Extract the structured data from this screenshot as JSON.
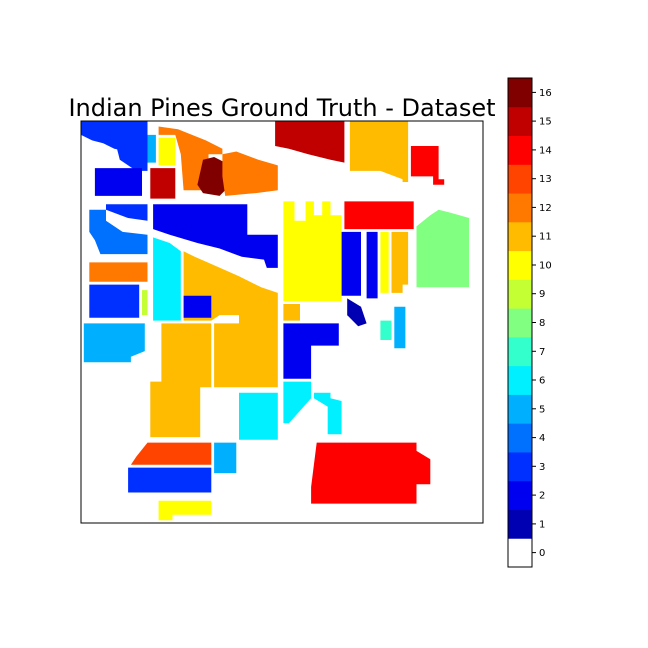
{
  "chart_data": {
    "type": "heatmap",
    "title": "Indian Pines Ground Truth - Dataset",
    "xlabel": "",
    "ylabel": "",
    "grid": false,
    "axis_ticks": false,
    "image_extent": [
      0,
      145,
      145,
      0
    ],
    "colormap": "jet",
    "colorbar": {
      "position": "right",
      "range": [
        -0.5,
        16.5
      ],
      "ticks": [
        0,
        1,
        2,
        3,
        4,
        5,
        6,
        7,
        8,
        9,
        10,
        11,
        12,
        13,
        14,
        15,
        16
      ],
      "tick_labels": [
        "0",
        "1",
        "2",
        "3",
        "4",
        "5",
        "6",
        "7",
        "8",
        "9",
        "10",
        "11",
        "12",
        "13",
        "14",
        "15",
        "16"
      ],
      "colors": [
        "#ffffff",
        "#0000b2",
        "#0000f0",
        "#0030ff",
        "#0070ff",
        "#00b0ff",
        "#00f0ff",
        "#33ffcc",
        "#80ff80",
        "#c4ff33",
        "#ffff00",
        "#ffbb00",
        "#ff7800",
        "#ff4400",
        "#ff0000",
        "#c00000",
        "#800000"
      ]
    },
    "regions": [
      {
        "label": 3,
        "polygon": [
          [
            0,
            0
          ],
          [
            24,
            0
          ],
          [
            24,
            5
          ],
          [
            20,
            9
          ],
          [
            17,
            11
          ],
          [
            12,
            10
          ],
          [
            8,
            8
          ],
          [
            4,
            7
          ],
          [
            0,
            5
          ]
        ]
      },
      {
        "label": 3,
        "polygon": [
          [
            15,
            5
          ],
          [
            24,
            5
          ],
          [
            24,
            18
          ],
          [
            20,
            18
          ],
          [
            14,
            14
          ],
          [
            13,
            10
          ]
        ]
      },
      {
        "label": 5,
        "polygon": [
          [
            24,
            5
          ],
          [
            27,
            5
          ],
          [
            27,
            15
          ],
          [
            24,
            15
          ]
        ]
      },
      {
        "label": 10,
        "polygon": [
          [
            28,
            6
          ],
          [
            34,
            6
          ],
          [
            34,
            16
          ],
          [
            28,
            16
          ]
        ]
      },
      {
        "label": 12,
        "polygon": [
          [
            28,
            2
          ],
          [
            35,
            3
          ],
          [
            45,
            7
          ],
          [
            51,
            10
          ],
          [
            51,
            12
          ],
          [
            46,
            12
          ],
          [
            46,
            25
          ],
          [
            37,
            25
          ],
          [
            36,
            12
          ],
          [
            34,
            5
          ],
          [
            28,
            5
          ]
        ]
      },
      {
        "label": 2,
        "polygon": [
          [
            5,
            17
          ],
          [
            22,
            17
          ],
          [
            22,
            27
          ],
          [
            5,
            27
          ]
        ]
      },
      {
        "label": 15,
        "polygon": [
          [
            25,
            17
          ],
          [
            34,
            17
          ],
          [
            34,
            28
          ],
          [
            25,
            28
          ]
        ]
      },
      {
        "label": 16,
        "polygon": [
          [
            44,
            14
          ],
          [
            48,
            13
          ],
          [
            52,
            15
          ],
          [
            53,
            24
          ],
          [
            50,
            27
          ],
          [
            44,
            26
          ],
          [
            42,
            23
          ]
        ]
      },
      {
        "label": 12,
        "polygon": [
          [
            51,
            12
          ],
          [
            56,
            11
          ],
          [
            64,
            14
          ],
          [
            71,
            16
          ],
          [
            71,
            25
          ],
          [
            63,
            26
          ],
          [
            52,
            27
          ],
          [
            51,
            20
          ]
        ]
      },
      {
        "label": 15,
        "polygon": [
          [
            70,
            0
          ],
          [
            95,
            0
          ],
          [
            95,
            15
          ],
          [
            90,
            14
          ],
          [
            82,
            12
          ],
          [
            75,
            10
          ],
          [
            70,
            9
          ]
        ]
      },
      {
        "label": 11,
        "polygon": [
          [
            97,
            0
          ],
          [
            118,
            0
          ],
          [
            118,
            22
          ],
          [
            116,
            22
          ],
          [
            116,
            21
          ],
          [
            108,
            18
          ],
          [
            97,
            18
          ]
        ]
      },
      {
        "label": 14,
        "polygon": [
          [
            119,
            9
          ],
          [
            129,
            9
          ],
          [
            129,
            21
          ],
          [
            131,
            21
          ],
          [
            131,
            23
          ],
          [
            127,
            23
          ],
          [
            127,
            20
          ],
          [
            119,
            20
          ]
        ]
      },
      {
        "label": 3,
        "polygon": [
          [
            9,
            30
          ],
          [
            24,
            30
          ],
          [
            24,
            36
          ],
          [
            17,
            35
          ],
          [
            9,
            32
          ]
        ]
      },
      {
        "label": 4,
        "polygon": [
          [
            3,
            32
          ],
          [
            9,
            32
          ],
          [
            9,
            36
          ],
          [
            15,
            40
          ],
          [
            24,
            41
          ],
          [
            24,
            48
          ],
          [
            7,
            48
          ],
          [
            5,
            43
          ],
          [
            3,
            40
          ]
        ]
      },
      {
        "label": 2,
        "polygon": [
          [
            26,
            30
          ],
          [
            60,
            30
          ],
          [
            60,
            41
          ],
          [
            71,
            41
          ],
          [
            71,
            53
          ],
          [
            67,
            53
          ],
          [
            66,
            50
          ],
          [
            58,
            49
          ],
          [
            50,
            46
          ],
          [
            42,
            44
          ],
          [
            32,
            41
          ],
          [
            26,
            39
          ]
        ]
      },
      {
        "label": 10,
        "polygon": [
          [
            73,
            29
          ],
          [
            77,
            29
          ],
          [
            77,
            36
          ],
          [
            81,
            36
          ],
          [
            81,
            29
          ],
          [
            84,
            29
          ],
          [
            84,
            34
          ],
          [
            87,
            34
          ],
          [
            87,
            29
          ],
          [
            90,
            29
          ],
          [
            90,
            34
          ],
          [
            94,
            34
          ],
          [
            94,
            65
          ],
          [
            73,
            65
          ]
        ]
      },
      {
        "label": 14,
        "polygon": [
          [
            95,
            29
          ],
          [
            120,
            29
          ],
          [
            120,
            39
          ],
          [
            95,
            39
          ]
        ]
      },
      {
        "label": 8,
        "polygon": [
          [
            126,
            34
          ],
          [
            129,
            32
          ],
          [
            133,
            33
          ],
          [
            140,
            35
          ],
          [
            140,
            60
          ],
          [
            121,
            60
          ],
          [
            121,
            38
          ]
        ]
      },
      {
        "label": 12,
        "polygon": [
          [
            3,
            51
          ],
          [
            24,
            51
          ],
          [
            24,
            58
          ],
          [
            3,
            58
          ]
        ]
      },
      {
        "label": 6,
        "polygon": [
          [
            26,
            42
          ],
          [
            32,
            44
          ],
          [
            36,
            47
          ],
          [
            36,
            72
          ],
          [
            26,
            72
          ]
        ]
      },
      {
        "label": 11,
        "polygon": [
          [
            37,
            47
          ],
          [
            41,
            49
          ],
          [
            48,
            52
          ],
          [
            57,
            56
          ],
          [
            65,
            60
          ],
          [
            71,
            62
          ],
          [
            71,
            96
          ],
          [
            68,
            96
          ],
          [
            48,
            96
          ],
          [
            48,
            73
          ],
          [
            57,
            73
          ],
          [
            57,
            70
          ],
          [
            50,
            70
          ],
          [
            47,
            72
          ],
          [
            37,
            72
          ]
        ]
      },
      {
        "label": 2,
        "polygon": [
          [
            37,
            63
          ],
          [
            47,
            63
          ],
          [
            47,
            71
          ],
          [
            37,
            71
          ]
        ]
      },
      {
        "label": 3,
        "polygon": [
          [
            3,
            59
          ],
          [
            21,
            59
          ],
          [
            21,
            71
          ],
          [
            3,
            71
          ]
        ]
      },
      {
        "label": 9,
        "polygon": [
          [
            22,
            61
          ],
          [
            24,
            61
          ],
          [
            24,
            70
          ],
          [
            22,
            70
          ]
        ]
      },
      {
        "label": 2,
        "polygon": [
          [
            94,
            40
          ],
          [
            101,
            40
          ],
          [
            101,
            63
          ],
          [
            94,
            63
          ]
        ]
      },
      {
        "label": 2,
        "polygon": [
          [
            103,
            40
          ],
          [
            107,
            40
          ],
          [
            107,
            64
          ],
          [
            103,
            64
          ]
        ]
      },
      {
        "label": 10,
        "polygon": [
          [
            108,
            40
          ],
          [
            111,
            40
          ],
          [
            111,
            62
          ],
          [
            108,
            62
          ]
        ]
      },
      {
        "label": 11,
        "polygon": [
          [
            112,
            40
          ],
          [
            118,
            40
          ],
          [
            118,
            59
          ],
          [
            116,
            59
          ],
          [
            116,
            62
          ],
          [
            112,
            62
          ]
        ]
      },
      {
        "label": 1,
        "polygon": [
          [
            96,
            64
          ],
          [
            101,
            67
          ],
          [
            103,
            73
          ],
          [
            100,
            74
          ],
          [
            96,
            70
          ]
        ]
      },
      {
        "label": 11,
        "polygon": [
          [
            73,
            66
          ],
          [
            79,
            66
          ],
          [
            79,
            72
          ],
          [
            73,
            72
          ]
        ]
      },
      {
        "label": 2,
        "polygon": [
          [
            73,
            73
          ],
          [
            93,
            73
          ],
          [
            93,
            81
          ],
          [
            83,
            81
          ],
          [
            83,
            93
          ],
          [
            73,
            93
          ]
        ]
      },
      {
        "label": 7,
        "polygon": [
          [
            108,
            72
          ],
          [
            112,
            72
          ],
          [
            112,
            79
          ],
          [
            108,
            79
          ]
        ]
      },
      {
        "label": 5,
        "polygon": [
          [
            113,
            67
          ],
          [
            117,
            67
          ],
          [
            117,
            82
          ],
          [
            113,
            82
          ]
        ]
      },
      {
        "label": 5,
        "polygon": [
          [
            1,
            73
          ],
          [
            23,
            73
          ],
          [
            23,
            83
          ],
          [
            18,
            85
          ],
          [
            18,
            87
          ],
          [
            1,
            87
          ]
        ]
      },
      {
        "label": 11,
        "polygon": [
          [
            29,
            73
          ],
          [
            47,
            73
          ],
          [
            47,
            96
          ],
          [
            43,
            96
          ],
          [
            43,
            114
          ],
          [
            25,
            114
          ],
          [
            25,
            94
          ],
          [
            29,
            94
          ]
        ]
      },
      {
        "label": 6,
        "polygon": [
          [
            73,
            94
          ],
          [
            83,
            94
          ],
          [
            83,
            100
          ],
          [
            75,
            109
          ],
          [
            73,
            109
          ]
        ]
      },
      {
        "label": 6,
        "polygon": [
          [
            84,
            98
          ],
          [
            90,
            98
          ],
          [
            90,
            100
          ],
          [
            94,
            101
          ],
          [
            94,
            113
          ],
          [
            89,
            113
          ],
          [
            89,
            103
          ],
          [
            84,
            100
          ]
        ]
      },
      {
        "label": 6,
        "polygon": [
          [
            57,
            98
          ],
          [
            71,
            98
          ],
          [
            71,
            115
          ],
          [
            57,
            115
          ]
        ]
      },
      {
        "label": 13,
        "polygon": [
          [
            24,
            116
          ],
          [
            47,
            116
          ],
          [
            47,
            124
          ],
          [
            18,
            124
          ],
          [
            20,
            121
          ]
        ]
      },
      {
        "label": 5,
        "polygon": [
          [
            48,
            116
          ],
          [
            56,
            116
          ],
          [
            56,
            127
          ],
          [
            48,
            127
          ]
        ]
      },
      {
        "label": 14,
        "polygon": [
          [
            85,
            116
          ],
          [
            121,
            116
          ],
          [
            121,
            119
          ],
          [
            126,
            122
          ],
          [
            126,
            131
          ],
          [
            121,
            131
          ],
          [
            121,
            138
          ],
          [
            83,
            138
          ],
          [
            83,
            132
          ],
          [
            84,
            124
          ]
        ]
      },
      {
        "label": 3,
        "polygon": [
          [
            17,
            125
          ],
          [
            47,
            125
          ],
          [
            47,
            134
          ],
          [
            17,
            134
          ]
        ]
      },
      {
        "label": 10,
        "polygon": [
          [
            28,
            137
          ],
          [
            47,
            137
          ],
          [
            47,
            142
          ],
          [
            33,
            142
          ],
          [
            33,
            144
          ],
          [
            28,
            144
          ]
        ]
      }
    ]
  }
}
